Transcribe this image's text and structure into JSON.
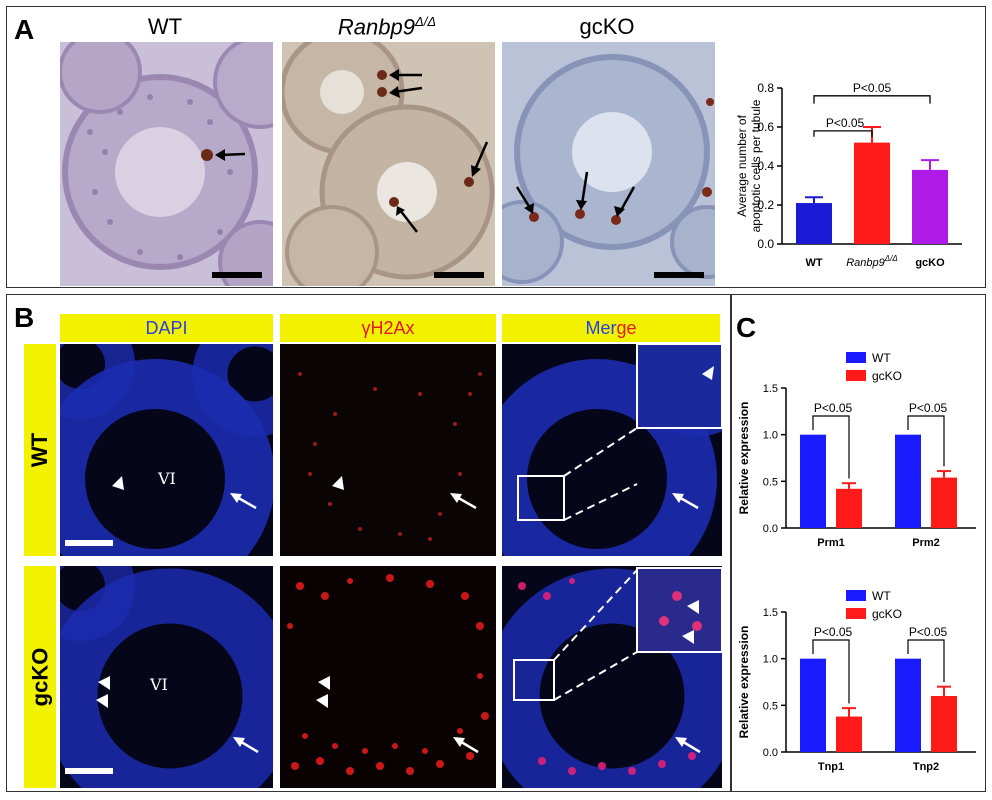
{
  "panelA": {
    "letter": "A",
    "titles": [
      "WT",
      "Ranbp9",
      "Δ/Δ",
      "gcKO"
    ],
    "chart_data": {
      "type": "bar",
      "categories": [
        "WT",
        "Ranbp9",
        "gcKO"
      ],
      "category_sup": [
        "",
        "Δ/Δ",
        ""
      ],
      "values": [
        0.21,
        0.52,
        0.38
      ],
      "errors": [
        0.03,
        0.08,
        0.05
      ],
      "colors": [
        "#1a1ad4",
        "#ff1a1a",
        "#b01ae6"
      ],
      "ylabel": "Average number of apoptotic cells per tubule",
      "ylabel_lines": [
        "Average number of",
        "apoptotic cells per tubule"
      ],
      "ylim": [
        0,
        0.8
      ],
      "yticks": [
        "0.0",
        "0.2",
        "0.4",
        "0.6",
        "0.8"
      ],
      "annotations": [
        "P<0.05",
        "P<0.05"
      ]
    }
  },
  "panelB": {
    "letter": "B",
    "columns": [
      "DAPI",
      "γH2Ax",
      "Mer",
      "ge"
    ],
    "rows": [
      "WT",
      "gcKO"
    ],
    "stage": "VI"
  },
  "panelC": {
    "letter": "C",
    "chart_data": [
      {
        "type": "bar",
        "categories": [
          "Prm1",
          "Prm2"
        ],
        "series": [
          {
            "name": "WT",
            "values": [
              1.0,
              1.0
            ],
            "color": "#1a1aff"
          },
          {
            "name": "gcKO",
            "values": [
              0.42,
              0.54
            ],
            "color": "#ff1a1a"
          }
        ],
        "errors": [
          [
            0,
            0
          ],
          [
            0.06,
            0.07
          ]
        ],
        "ylabel": "Relative expression",
        "ylim": [
          0,
          1.5
        ],
        "yticks": [
          "0.0",
          "0.5",
          "1.0",
          "1.5"
        ],
        "annotations": [
          "P<0.05",
          "P<0.05"
        ]
      },
      {
        "type": "bar",
        "categories": [
          "Tnp1",
          "Tnp2"
        ],
        "series": [
          {
            "name": "WT",
            "values": [
              1.0,
              1.0
            ],
            "color": "#1a1aff"
          },
          {
            "name": "gcKO",
            "values": [
              0.38,
              0.6
            ],
            "color": "#ff1a1a"
          }
        ],
        "errors": [
          [
            0,
            0
          ],
          [
            0.09,
            0.1
          ]
        ],
        "ylabel": "Relative expression",
        "ylim": [
          0,
          1.5
        ],
        "yticks": [
          "0.0",
          "0.5",
          "1.0",
          "1.5"
        ],
        "annotations": [
          "P<0.05",
          "P<0.05"
        ]
      }
    ]
  }
}
